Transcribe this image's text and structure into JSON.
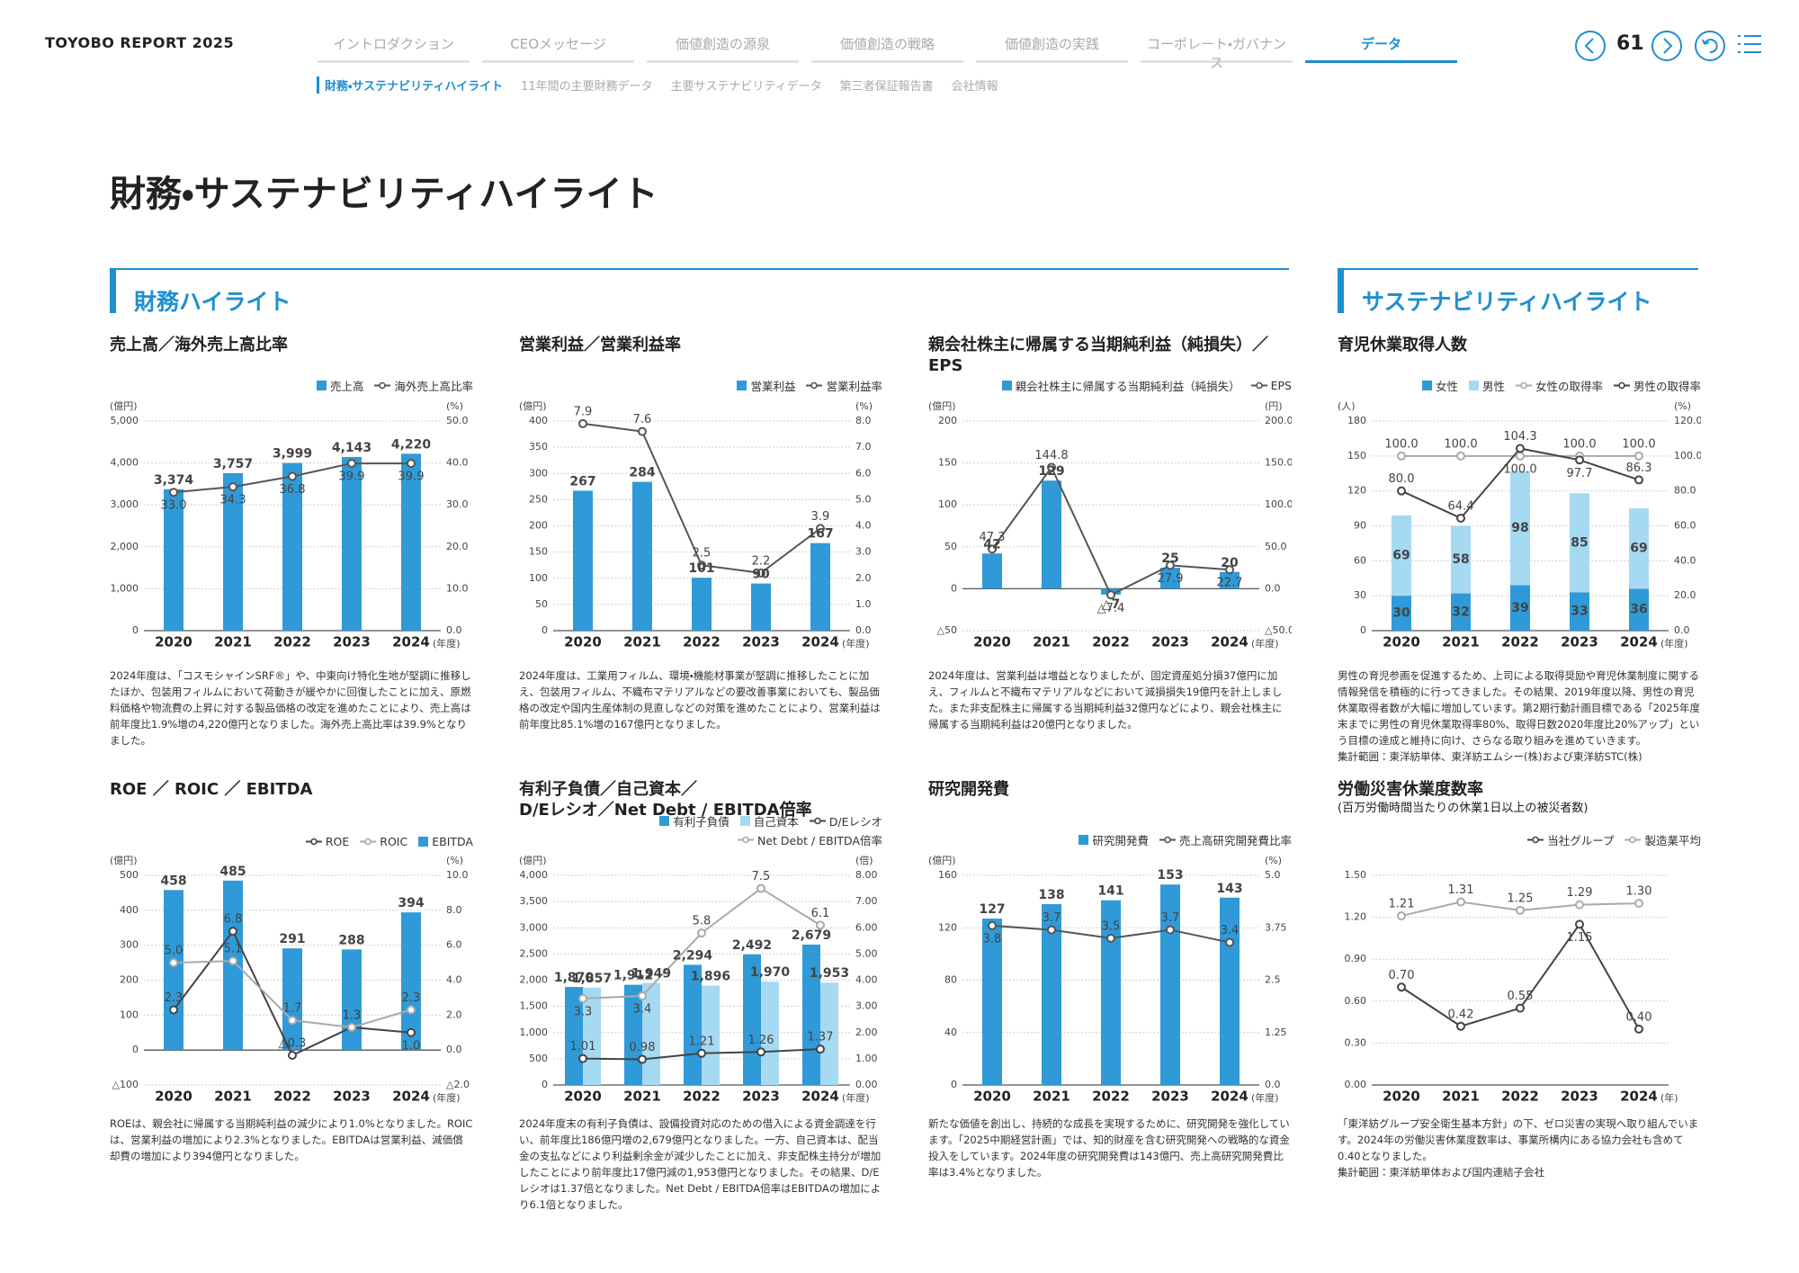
{
  "header": {
    "brand": "TOYOBO REPORT 2025",
    "page": 61,
    "tabs": [
      {
        "label": "イントロダクション",
        "active": false
      },
      {
        "label": "CEOメッセージ",
        "active": false
      },
      {
        "label": "価値創造の源泉",
        "active": false
      },
      {
        "label": "価値創造の戦略",
        "active": false
      },
      {
        "label": "価値創造の実践",
        "active": false
      },
      {
        "label": "コーポレート・ガバナンス",
        "active": false
      },
      {
        "label": "データ",
        "active": true
      }
    ],
    "subnav": [
      {
        "label": "財務・サステナビリティハイライト",
        "active": true
      },
      {
        "label": "11年間の主要財務データ",
        "active": false
      },
      {
        "label": "主要サステナビリティデータ",
        "active": false
      },
      {
        "label": "第三者保証報告書",
        "active": false
      },
      {
        "label": "会社情報",
        "active": false
      }
    ]
  },
  "title": "財務・サステナビリティハイライト",
  "sections": [
    "財務ハイライト",
    "サステナビリティハイライト"
  ],
  "chart_data": [
    {
      "type": "bar",
      "title": "売上高／海外売上高比率",
      "y_unit": "(億円)",
      "y2_unit": "(%)",
      "x_unit": "(年度)",
      "grid": true,
      "categories": [
        "2020",
        "2021",
        "2022",
        "2023",
        "2024"
      ],
      "ylim": [
        0,
        5000
      ],
      "yticks": [
        0,
        {
          "value": 1000,
          "label": "1,000"
        },
        {
          "value": 2000,
          "label": "2,000"
        },
        {
          "value": 3000,
          "label": "3,000"
        },
        {
          "value": 4000,
          "label": "4,000"
        },
        {
          "value": 5000,
          "label": "5,000"
        }
      ],
      "y2lim": [
        0,
        50
      ],
      "y2ticks": [
        {
          "value": 0,
          "label": "0.0"
        },
        {
          "value": 10,
          "label": "10.0"
        },
        {
          "value": 20,
          "label": "20.0"
        },
        {
          "value": 30,
          "label": "30.0"
        },
        {
          "value": 40,
          "label": "40.0"
        },
        {
          "value": 50,
          "label": "50.0"
        }
      ],
      "series": [
        {
          "name": "売上高",
          "type": "bar",
          "color": "#2f9ad7",
          "values": [
            3374,
            3757,
            3999,
            4143,
            4220
          ],
          "value_labels": [
            "3,374",
            "3,757",
            "3,999",
            "4,143",
            "4,220"
          ]
        },
        {
          "name": "海外売上高比率",
          "type": "line",
          "axis": "y2",
          "color": "#555555",
          "values": [
            33.0,
            34.3,
            36.8,
            39.9,
            39.9
          ],
          "value_labels": [
            "33.0",
            "34.3",
            "36.8",
            "39.9",
            "39.9"
          ]
        }
      ],
      "description": "2024年度は、「コスモシャインSRF®」や、中東向け特化生地が堅調に推移したほか、包装用フィルムにおいて荷動きが緩やかに回復したことに加え、原燃料価格や物流費の上昇に対する製品価格の改定を進めたことにより、売上高は前年度比1.9%増の4,220億円となりました。海外売上高比率は39.9%となりました。"
    },
    {
      "type": "bar",
      "title": "営業利益／営業利益率",
      "y_unit": "(億円)",
      "y2_unit": "(%)",
      "x_unit": "(年度)",
      "grid": true,
      "categories": [
        "2020",
        "2021",
        "2022",
        "2023",
        "2024"
      ],
      "ylim": [
        0,
        400
      ],
      "yticks": [
        0,
        50,
        100,
        150,
        200,
        250,
        300,
        350,
        400
      ],
      "y2lim": [
        0,
        8
      ],
      "y2ticks": [
        {
          "value": 0,
          "label": "0.0"
        },
        {
          "value": 1,
          "label": "1.0"
        },
        {
          "value": 2,
          "label": "2.0"
        },
        {
          "value": 3,
          "label": "3.0"
        },
        {
          "value": 4,
          "label": "4.0"
        },
        {
          "value": 5,
          "label": "5.0"
        },
        {
          "value": 6,
          "label": "6.0"
        },
        {
          "value": 7,
          "label": "7.0"
        },
        {
          "value": 8,
          "label": "8.0"
        }
      ],
      "series": [
        {
          "name": "営業利益",
          "type": "bar",
          "color": "#2f9ad7",
          "values": [
            267,
            284,
            101,
            90,
            167
          ]
        },
        {
          "name": "営業利益率",
          "type": "line",
          "axis": "y2",
          "color": "#555555",
          "values": [
            7.9,
            7.6,
            2.5,
            2.2,
            3.9
          ]
        }
      ],
      "description": "2024年度は、工業用フィルム、環境・機能材事業が堅調に推移したことに加え、包装用フィルム、不織布マテリアルなどの要改善事業においても、製品価格の改定や国内生産体制の見直しなどの対策を進めたことにより、営業利益は前年度比85.1%増の167億円となりました。"
    },
    {
      "type": "bar",
      "title": "親会社株主に帰属する当期純利益（純損失）／EPS",
      "y_unit": "(億円)",
      "y2_unit": "(円)",
      "x_unit": "(年度)",
      "grid": true,
      "categories": [
        "2020",
        "2021",
        "2022",
        "2023",
        "2024"
      ],
      "ylim": [
        -50,
        200
      ],
      "yticks": [
        {
          "value": -50,
          "label": "△50"
        },
        0,
        50,
        100,
        150,
        200
      ],
      "y2lim": [
        -50,
        200
      ],
      "y2ticks": [
        {
          "value": -50,
          "label": "△50.0"
        },
        {
          "value": 0,
          "label": "0.0"
        },
        {
          "value": 50,
          "label": "50.0"
        },
        {
          "value": 100,
          "label": "100.0"
        },
        {
          "value": 150,
          "label": "150.0"
        },
        {
          "value": 200,
          "label": "200.0"
        }
      ],
      "series": [
        {
          "name": "親会社株主に帰属する当期純利益（純損失）",
          "type": "bar",
          "color": "#2f9ad7",
          "values": [
            42,
            129,
            -7,
            25,
            20
          ],
          "value_labels": [
            "42",
            "129",
            "△7",
            "25",
            "20"
          ]
        },
        {
          "name": "EPS",
          "type": "line",
          "axis": "y2",
          "color": "#555555",
          "values": [
            47.3,
            144.8,
            -7.4,
            27.9,
            22.7
          ],
          "value_labels": [
            "47.3",
            "144.8",
            "△7.4",
            "27.9",
            "22.7"
          ]
        }
      ],
      "description": "2024年度は、営業利益は増益となりましたが、固定資産処分損37億円に加え、フィルムと不織布マテリアルなどにおいて減損損失19億円を計上しました。また非支配株主に帰属する当期純利益32億円などにより、親会社株主に帰属する当期純利益は20億円となりました。"
    },
    {
      "type": "bar",
      "title": "育児休業取得人数",
      "y_unit": "(人)",
      "y2_unit": "(%)",
      "x_unit": "(年度)",
      "grid": true,
      "stacked": true,
      "categories": [
        "2020",
        "2021",
        "2022",
        "2023",
        "2024"
      ],
      "ylim": [
        0,
        180
      ],
      "yticks": [
        0,
        30,
        60,
        90,
        120,
        150,
        180
      ],
      "y2lim": [
        0,
        120
      ],
      "y2ticks": [
        {
          "value": 0,
          "label": "0.0"
        },
        {
          "value": 20,
          "label": "20.0"
        },
        {
          "value": 40,
          "label": "40.0"
        },
        {
          "value": 60,
          "label": "60.0"
        },
        {
          "value": 80,
          "label": "80.0"
        },
        {
          "value": 100,
          "label": "100.0"
        },
        {
          "value": 120,
          "label": "120.0"
        }
      ],
      "series": [
        {
          "name": "女性",
          "type": "bar",
          "color": "#2f9ad7",
          "values": [
            30,
            32,
            39,
            33,
            36
          ]
        },
        {
          "name": "男性",
          "type": "bar",
          "color": "#a6d9f2",
          "values": [
            69,
            58,
            98,
            85,
            69
          ]
        },
        {
          "name": "女性の取得率",
          "type": "line",
          "axis": "y2",
          "color": "#aaaaaa",
          "values": [
            100,
            100,
            100,
            100,
            100
          ],
          "value_labels": [
            "100.0",
            "100.0",
            "100.0",
            "100.0",
            "100.0"
          ]
        },
        {
          "name": "男性の取得率",
          "type": "line",
          "axis": "y2",
          "color": "#444444",
          "values": [
            80,
            64.4,
            104.3,
            97.7,
            86.3
          ],
          "value_labels": [
            "80.0",
            "64.4",
            "104.3",
            "97.7",
            "86.3"
          ]
        }
      ],
      "description": "男性の育児参画を促進するため、上司による取得奨励や育児休業制度に関する情報発信を積極的に行ってきました。その結果、2019年度以降、男性の育児休業取得者数が大幅に増加しています。第2期行動計画目標である「2025年度末までに男性の育児休業取得率80%、取得日数2020年度比20%アップ」という目標の達成と維持に向け、さらなる取り組みを進めていきます。",
      "note": "集計範囲：東洋紡単体、東洋紡エムシー(株)および東洋紡STC(株)"
    },
    {
      "type": "bar",
      "title": "ROE ／ ROIC ／ EBITDA",
      "y_unit": "(億円)",
      "y2_unit": "(%)",
      "x_unit": "(年度)",
      "grid": true,
      "categories": [
        "2020",
        "2021",
        "2022",
        "2023",
        "2024"
      ],
      "ylim": [
        -100,
        500
      ],
      "yticks": [
        {
          "value": -100,
          "label": "△100"
        },
        0,
        100,
        200,
        300,
        400,
        500
      ],
      "y2lim": [
        -2,
        10
      ],
      "y2ticks": [
        {
          "value": -2,
          "label": "△2.0"
        },
        {
          "value": 0,
          "label": "0.0"
        },
        {
          "value": 2,
          "label": "2.0"
        },
        {
          "value": 4,
          "label": "4.0"
        },
        {
          "value": 6,
          "label": "6.0"
        },
        {
          "value": 8,
          "label": "8.0"
        },
        {
          "value": 10,
          "label": "10.0"
        }
      ],
      "series": [
        {
          "name": "ROE",
          "type": "line",
          "axis": "y2",
          "color": "#444444",
          "values": [
            2.3,
            6.8,
            -0.3,
            1.3,
            1.0
          ],
          "value_labels": [
            "2.3",
            "6.8",
            "△0.3",
            "1.3",
            "1.0"
          ]
        },
        {
          "name": "ROIC",
          "type": "line",
          "axis": "y2",
          "color": "#aaaaaa",
          "values": [
            5.0,
            5.1,
            1.7,
            1.3,
            2.3
          ],
          "value_labels": [
            "5.0",
            "5.1",
            "1.7",
            "1.3",
            "2.3"
          ]
        },
        {
          "name": "EBITDA",
          "type": "bar",
          "color": "#2f9ad7",
          "values": [
            458,
            485,
            291,
            288,
            394
          ]
        }
      ],
      "description": "ROEは、親会社に帰属する当期純利益の減少により1.0%となりました。ROICは、営業利益の増加により2.3%となりました。EBITDAは営業利益、減価償却費の増加により394億円となりました。"
    },
    {
      "type": "bar",
      "title": [
        "有利子負債／自己資本／",
        "D/Eレシオ／Net Debt / EBITDA倍率"
      ],
      "y_unit": "(億円)",
      "y2_unit": "(倍)",
      "x_unit": "(年度)",
      "grid": true,
      "categories": [
        "2020",
        "2021",
        "2022",
        "2023",
        "2024"
      ],
      "ylim": [
        0,
        4000
      ],
      "yticks": [
        0,
        500,
        {
          "value": 1000,
          "label": "1,000"
        },
        {
          "value": 1500,
          "label": "1,500"
        },
        {
          "value": 2000,
          "label": "2,000"
        },
        {
          "value": 2500,
          "label": "2,500"
        },
        {
          "value": 3000,
          "label": "3,000"
        },
        {
          "value": 3500,
          "label": "3,500"
        },
        {
          "value": 4000,
          "label": "4,000"
        }
      ],
      "y2lim": [
        0,
        8
      ],
      "y2ticks": [
        {
          "value": 0,
          "label": "0.00"
        },
        {
          "value": 1,
          "label": "1.00"
        },
        {
          "value": 2,
          "label": "2.00"
        },
        {
          "value": 3,
          "label": "3.00"
        },
        {
          "value": 4,
          "label": "4.00"
        },
        {
          "value": 5,
          "label": "5.00"
        },
        {
          "value": 6,
          "label": "6.00"
        },
        {
          "value": 7,
          "label": "7.00"
        },
        {
          "value": 8,
          "label": "8.00"
        }
      ],
      "series": [
        {
          "name": "有利子負債",
          "type": "bar",
          "color": "#2f9ad7",
          "values": [
            1870,
            1912,
            2294,
            2492,
            2679
          ],
          "value_labels": [
            "1,870",
            "1,912",
            "2,294",
            "2,492",
            "2,679"
          ]
        },
        {
          "name": "自己資本",
          "type": "bar",
          "color": "#a6d9f2",
          "values": [
            1857,
            1949,
            1896,
            1970,
            1953
          ],
          "value_labels": [
            "1,857",
            "1,949",
            "1,896",
            "1,970",
            "1,953"
          ]
        },
        {
          "name": "D/Eレシオ",
          "type": "line",
          "axis": "y2",
          "color": "#444444",
          "values": [
            1.01,
            0.98,
            1.21,
            1.26,
            1.37
          ]
        },
        {
          "name": "Net Debt / EBITDA倍率",
          "type": "line",
          "axis": "y2",
          "color": "#aaaaaa",
          "values": [
            3.3,
            3.4,
            5.8,
            7.5,
            6.1
          ]
        }
      ],
      "description": "2024年度末の有利子負債は、設備投資対応のための借入による資金調達を行い、前年度比186億円増の2,679億円となりました。一方、自己資本は、配当金の支払などにより利益剰余金が減少したことに加え、非支配株主持分が増加したことにより前年度比17億円減の1,953億円となりました。その結果、D/Eレシオは1.37倍となりました。Net Debt / EBITDA倍率はEBITDAの増加により6.1倍となりました。"
    },
    {
      "type": "bar",
      "title": "研究開発費",
      "y_unit": "(億円)",
      "y2_unit": "(%)",
      "x_unit": "(年度)",
      "grid": true,
      "categories": [
        "2020",
        "2021",
        "2022",
        "2023",
        "2024"
      ],
      "ylim": [
        0,
        160
      ],
      "yticks": [
        0,
        40,
        80,
        120,
        160
      ],
      "y2lim": [
        0,
        5
      ],
      "y2ticks": [
        {
          "value": 0,
          "label": "0.0"
        },
        1.25,
        2.5,
        3.75,
        {
          "value": 5,
          "label": "5.0"
        }
      ],
      "series": [
        {
          "name": "研究開発費",
          "type": "bar",
          "color": "#2f9ad7",
          "values": [
            127,
            138,
            141,
            153,
            143
          ]
        },
        {
          "name": "売上高研究開発費比率",
          "type": "line",
          "axis": "y2",
          "color": "#555555",
          "values": [
            3.8,
            3.7,
            3.5,
            3.7,
            3.4
          ]
        }
      ],
      "description": "新たな価値を創出し、持続的な成長を実現するために、研究開発を強化しています。「2025中期経営計画」では、知的財産を含む研究開発への戦略的な資金投入をしています。2024年度の研究開発費は143億円、売上高研究開発費比率は3.4%となりました。"
    },
    {
      "type": "line",
      "title": "労働災害休業度数率",
      "subtitle": "(百万労働時間当たりの休業1日以上の被災者数)",
      "x_unit": "(年)",
      "grid": true,
      "categories": [
        "2020",
        "2021",
        "2022",
        "2023",
        "2024"
      ],
      "ylim": [
        0,
        1.5
      ],
      "yticks": [
        {
          "value": 0,
          "label": "0.00"
        },
        {
          "value": 0.3,
          "label": "0.30"
        },
        {
          "value": 0.6,
          "label": "0.60"
        },
        {
          "value": 0.9,
          "label": "0.90"
        },
        {
          "value": 1.2,
          "label": "1.20"
        },
        {
          "value": 1.5,
          "label": "1.50"
        }
      ],
      "series": [
        {
          "name": "当社グループ",
          "type": "line",
          "color": "#444444",
          "values": [
            0.7,
            0.42,
            0.55,
            1.15,
            0.4
          ],
          "value_labels": [
            "0.70",
            "0.42",
            "0.55",
            "1.15",
            "0.40"
          ]
        },
        {
          "name": "製造業平均",
          "type": "line",
          "color": "#aaaaaa",
          "values": [
            1.21,
            1.31,
            1.25,
            1.29,
            1.3
          ],
          "value_labels": [
            "1.21",
            "1.31",
            "1.25",
            "1.29",
            "1.30"
          ]
        }
      ],
      "description": "「東洋紡グループ安全衛生基本方針」の下、ゼロ災害の実現へ取り組んでいます。2024年の労働災害休業度数率は、事業所構内にある協力会社も含めて0.40となりました。",
      "note": "集計範囲：東洋紡単体および国内連結子会社"
    }
  ]
}
